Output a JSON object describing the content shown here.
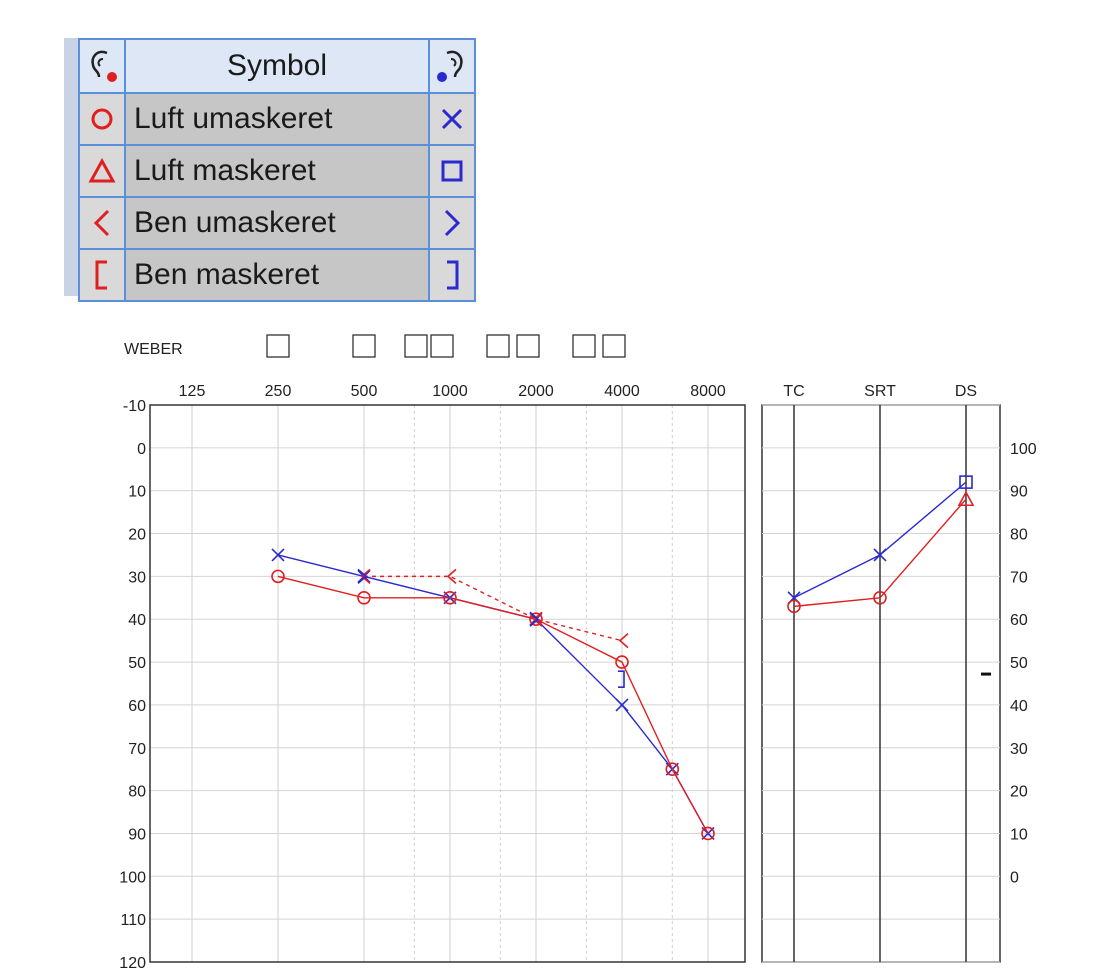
{
  "legend": {
    "header": "Symbol",
    "left_ear_icon": "ear-left-icon",
    "right_ear_icon": "ear-right-icon",
    "rows": [
      {
        "label": "Luft umaskeret",
        "left_symbol": "circle",
        "right_symbol": "x"
      },
      {
        "label": "Luft maskeret",
        "left_symbol": "triangle",
        "right_symbol": "square"
      },
      {
        "label": "Ben umaskeret",
        "left_symbol": "less-than",
        "right_symbol": "greater-than"
      },
      {
        "label": "Ben maskeret",
        "left_symbol": "bracket-left",
        "right_symbol": "bracket-right"
      }
    ],
    "colors": {
      "left": "#e02020",
      "right": "#2a2ad0"
    }
  },
  "chart_data": [
    {
      "type": "line",
      "x_label_weber": "WEBER",
      "x_ticks": [
        "125",
        "250",
        "500",
        "1000",
        "2000",
        "4000",
        "8000"
      ],
      "y_ticks": [
        "-10",
        "0",
        "10",
        "20",
        "30",
        "40",
        "50",
        "60",
        "70",
        "80",
        "90",
        "100",
        "110",
        "120"
      ],
      "ylim": [
        -10,
        120
      ],
      "y_inverted": true,
      "grid": true,
      "series": [
        {
          "color": "#2a2ad0",
          "marker": "x",
          "line": "solid",
          "x": [
            "250",
            "500",
            "1000",
            "2000",
            "4000",
            "6000",
            "8000"
          ],
          "y": [
            25,
            30,
            35,
            40,
            60,
            75,
            90
          ]
        },
        {
          "color": "#e02020",
          "marker": "circle",
          "line": "solid",
          "x": [
            "250",
            "500",
            "1000",
            "2000",
            "4000",
            "6000",
            "8000"
          ],
          "y": [
            30,
            35,
            35,
            40,
            50,
            75,
            90
          ]
        },
        {
          "color": "#e02020",
          "marker": "less-than",
          "line": "dashed",
          "x": [
            "500",
            "1000",
            "2000",
            "4000"
          ],
          "y": [
            30,
            30,
            40,
            45
          ]
        },
        {
          "color": "#2a2ad0",
          "marker": "greater-than",
          "line": "none",
          "x": [
            "500",
            "2000"
          ],
          "y": [
            30,
            40
          ]
        },
        {
          "color": "#2a2ad0",
          "marker": "bracket-right",
          "line": "none",
          "x": [
            "4000"
          ],
          "y": [
            54
          ]
        }
      ]
    },
    {
      "type": "line",
      "x_ticks": [
        "TC",
        "SRT",
        "DS"
      ],
      "y_ticks_right": [
        "100",
        "90",
        "80",
        "70",
        "60",
        "50",
        "40",
        "30",
        "20",
        "10",
        "0"
      ],
      "right_ylim": [
        0,
        100
      ],
      "series": [
        {
          "color": "#2a2ad0",
          "marker": "x",
          "line": "solid",
          "x": [
            "TC",
            "SRT"
          ],
          "y": [
            35,
            25
          ]
        },
        {
          "color": "#2a2ad0",
          "marker": "square",
          "line": "solid",
          "x": [
            "SRT",
            "DS"
          ],
          "y": [
            25,
            8
          ]
        },
        {
          "color": "#e02020",
          "marker": "circle",
          "line": "solid",
          "x": [
            "TC",
            "SRT"
          ],
          "y": [
            37,
            35
          ]
        },
        {
          "color": "#e02020",
          "marker": "triangle",
          "line": "solid",
          "x": [
            "SRT",
            "DS"
          ],
          "y": [
            35,
            12
          ]
        }
      ],
      "annotation_dash": {
        "right_value": 50
      }
    }
  ]
}
